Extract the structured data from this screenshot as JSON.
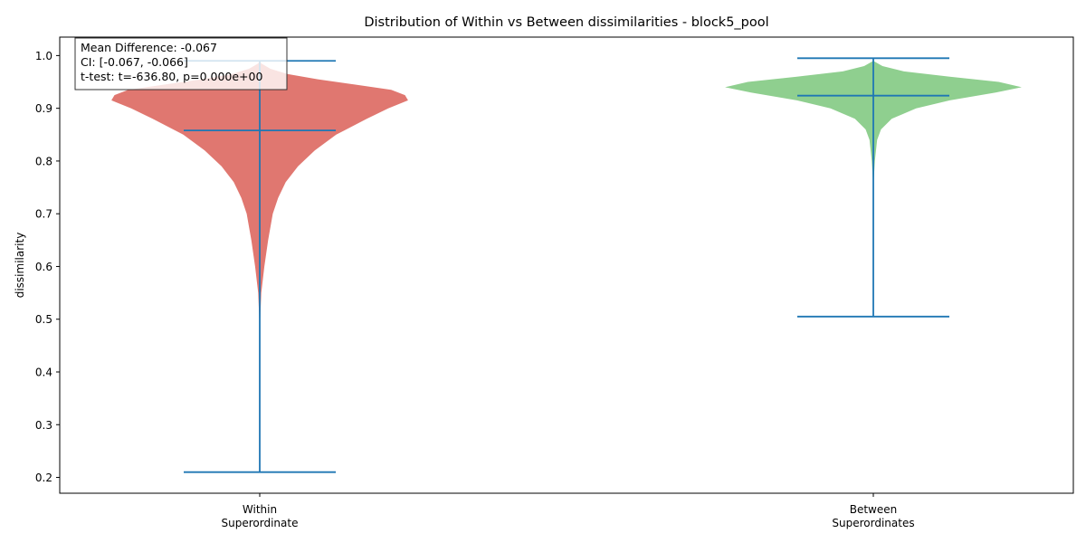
{
  "chart_data": {
    "type": "violin",
    "title": "Distribution of Within vs Between dissimilarities - block5_pool",
    "xlabel": "",
    "ylabel": "dissimilarity",
    "ylim": [
      0.17,
      1.035
    ],
    "yticks": [
      "0.2",
      "0.3",
      "0.4",
      "0.5",
      "0.6",
      "0.7",
      "0.8",
      "0.9",
      "1.0"
    ],
    "ytick_values": [
      0.2,
      0.3,
      0.4,
      0.5,
      0.6,
      0.7,
      0.8,
      0.9,
      1.0
    ],
    "grid": false,
    "categories": [
      {
        "line1": "Within",
        "line2": "Superordinate"
      },
      {
        "line1": "Between",
        "line2": "Superordinates"
      }
    ],
    "series": [
      {
        "min": 0.21,
        "max": 0.99,
        "median": 0.858,
        "color": "#e07770",
        "stat_color": "#1f77b4",
        "density": [
          [
            0.48,
            0.0
          ],
          [
            0.55,
            0.01
          ],
          [
            0.6,
            0.03
          ],
          [
            0.65,
            0.055
          ],
          [
            0.7,
            0.085
          ],
          [
            0.73,
            0.12
          ],
          [
            0.76,
            0.17
          ],
          [
            0.79,
            0.25
          ],
          [
            0.82,
            0.36
          ],
          [
            0.85,
            0.5
          ],
          [
            0.88,
            0.7
          ],
          [
            0.9,
            0.84
          ],
          [
            0.915,
            0.97
          ],
          [
            0.925,
            0.95
          ],
          [
            0.935,
            0.86
          ],
          [
            0.945,
            0.62
          ],
          [
            0.955,
            0.38
          ],
          [
            0.965,
            0.18
          ],
          [
            0.975,
            0.07
          ],
          [
            0.985,
            0.01
          ],
          [
            0.99,
            0.0
          ]
        ]
      },
      {
        "min": 0.505,
        "max": 0.995,
        "median": 0.924,
        "color": "#8fcf8f",
        "stat_color": "#1f77b4",
        "density": [
          [
            0.75,
            0.0
          ],
          [
            0.8,
            0.01
          ],
          [
            0.84,
            0.025
          ],
          [
            0.86,
            0.05
          ],
          [
            0.88,
            0.12
          ],
          [
            0.9,
            0.28
          ],
          [
            0.915,
            0.5
          ],
          [
            0.93,
            0.8
          ],
          [
            0.94,
            0.97
          ],
          [
            0.95,
            0.82
          ],
          [
            0.96,
            0.5
          ],
          [
            0.97,
            0.2
          ],
          [
            0.98,
            0.06
          ],
          [
            0.99,
            0.0
          ]
        ]
      }
    ],
    "annotation": [
      "Mean Difference: -0.067",
      "CI: [-0.067, -0.066]",
      "t-test: t=-636.80, p=0.000e+00"
    ]
  }
}
